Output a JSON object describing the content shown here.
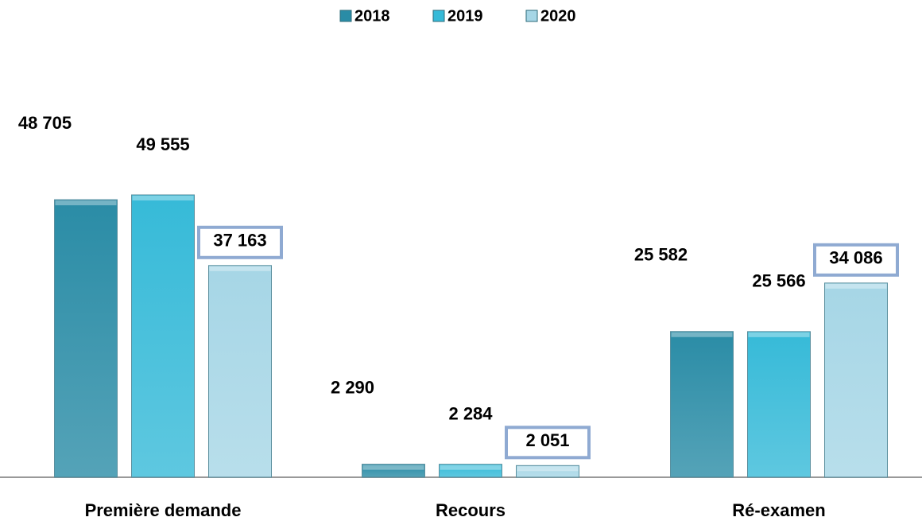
{
  "chart_data": {
    "type": "bar",
    "categories": [
      "Première demande",
      "Recours",
      "Ré-examen"
    ],
    "series": [
      {
        "name": "2018",
        "color": "#2a8ca6",
        "values": [
          48705,
          2290,
          25582
        ],
        "value_labels": [
          "48 705",
          "2 290",
          "25 582"
        ]
      },
      {
        "name": "2019",
        "color": "#36bad8",
        "values": [
          49555,
          2284,
          25566
        ],
        "value_labels": [
          "49 555",
          "2 284",
          "25 566"
        ]
      },
      {
        "name": "2020",
        "color": "#a6d6e6",
        "values": [
          37163,
          2051,
          34086
        ],
        "value_labels": [
          "37 163",
          "2 051",
          "34 086"
        ]
      }
    ]
  }
}
